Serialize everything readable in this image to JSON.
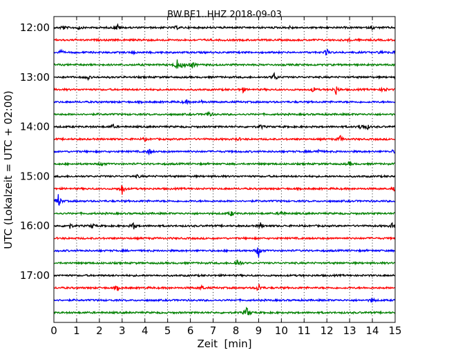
{
  "chart_data": {
    "type": "line",
    "title": "BW.BE1..HHZ 2018-09-03",
    "xlabel": "Zeit  [min]",
    "ylabel": "UTC (Lokalzeit = UTC + 02:00)",
    "xlim": [
      0,
      15
    ],
    "x_ticks": [
      "0",
      "1",
      "2",
      "3",
      "4",
      "5",
      "6",
      "7",
      "8",
      "9",
      "10",
      "11",
      "12",
      "13",
      "14",
      "15"
    ],
    "y_ticks": [
      "12:00",
      "13:00",
      "14:00",
      "15:00",
      "16:00",
      "17:00"
    ],
    "grid": "vertical dotted at each minute",
    "trace_colors": [
      "#000000",
      "#ff0000",
      "#0000ff",
      "#008000"
    ],
    "series": [
      {
        "start": "12:00",
        "events": [
          [
            0.4,
            4
          ],
          [
            1.1,
            3
          ],
          [
            2.8,
            5
          ],
          [
            5.4,
            2
          ],
          [
            10.4,
            2
          ],
          [
            14.0,
            2
          ]
        ]
      },
      {
        "start": "12:15",
        "events": [
          [
            4.0,
            2
          ],
          [
            13.0,
            2
          ]
        ]
      },
      {
        "start": "12:30",
        "events": [
          [
            0.3,
            3
          ],
          [
            3.5,
            2
          ],
          [
            12.0,
            5
          ],
          [
            14.4,
            3
          ],
          [
            15.0,
            3
          ]
        ]
      },
      {
        "start": "12:45",
        "events": [
          [
            5.4,
            9
          ],
          [
            5.7,
            6
          ],
          [
            6.1,
            5
          ]
        ]
      },
      {
        "start": "13:00",
        "events": [
          [
            1.5,
            3
          ],
          [
            9.7,
            7
          ]
        ]
      },
      {
        "start": "13:15",
        "events": [
          [
            8.3,
            4
          ],
          [
            11.4,
            4
          ],
          [
            12.4,
            7
          ],
          [
            14.5,
            5
          ]
        ]
      },
      {
        "start": "13:30",
        "events": [
          [
            5.8,
            3
          ],
          [
            6.5,
            2
          ]
        ]
      },
      {
        "start": "13:45",
        "events": [
          [
            6.8,
            4
          ]
        ]
      },
      {
        "start": "14:00",
        "events": [
          [
            2.6,
            3
          ],
          [
            9.1,
            3
          ],
          [
            13.5,
            6
          ],
          [
            13.8,
            3
          ]
        ]
      },
      {
        "start": "14:15",
        "events": [
          [
            4.0,
            2
          ],
          [
            8.1,
            2
          ],
          [
            12.6,
            5
          ]
        ]
      },
      {
        "start": "14:30",
        "events": [
          [
            4.2,
            4
          ],
          [
            11.6,
            4
          ],
          [
            14.9,
            2
          ]
        ]
      },
      {
        "start": "14:45",
        "events": [
          [
            2.1,
            3
          ],
          [
            13.0,
            3
          ]
        ]
      },
      {
        "start": "15:00",
        "events": [
          [
            3.7,
            2
          ]
        ]
      },
      {
        "start": "15:15",
        "events": [
          [
            3.0,
            9
          ],
          [
            15.0,
            4
          ]
        ]
      },
      {
        "start": "15:30",
        "events": [
          [
            0.2,
            11
          ]
        ]
      },
      {
        "start": "15:45",
        "events": [
          [
            7.8,
            4
          ],
          [
            10.0,
            4
          ]
        ]
      },
      {
        "start": "16:00",
        "events": [
          [
            0.7,
            4
          ],
          [
            1.7,
            3
          ],
          [
            3.5,
            5
          ],
          [
            9.1,
            5
          ],
          [
            14.9,
            5
          ]
        ]
      },
      {
        "start": "16:15",
        "events": []
      },
      {
        "start": "16:30",
        "events": [
          [
            9.0,
            9
          ]
        ]
      },
      {
        "start": "16:45",
        "events": [
          [
            8.1,
            8
          ]
        ]
      },
      {
        "start": "17:00",
        "events": []
      },
      {
        "start": "17:15",
        "events": [
          [
            2.8,
            3
          ],
          [
            6.5,
            3
          ],
          [
            9.0,
            7
          ]
        ]
      },
      {
        "start": "17:30",
        "events": [
          [
            14.0,
            4
          ]
        ]
      },
      {
        "start": "17:45",
        "events": [
          [
            8.5,
            10
          ]
        ]
      }
    ]
  }
}
